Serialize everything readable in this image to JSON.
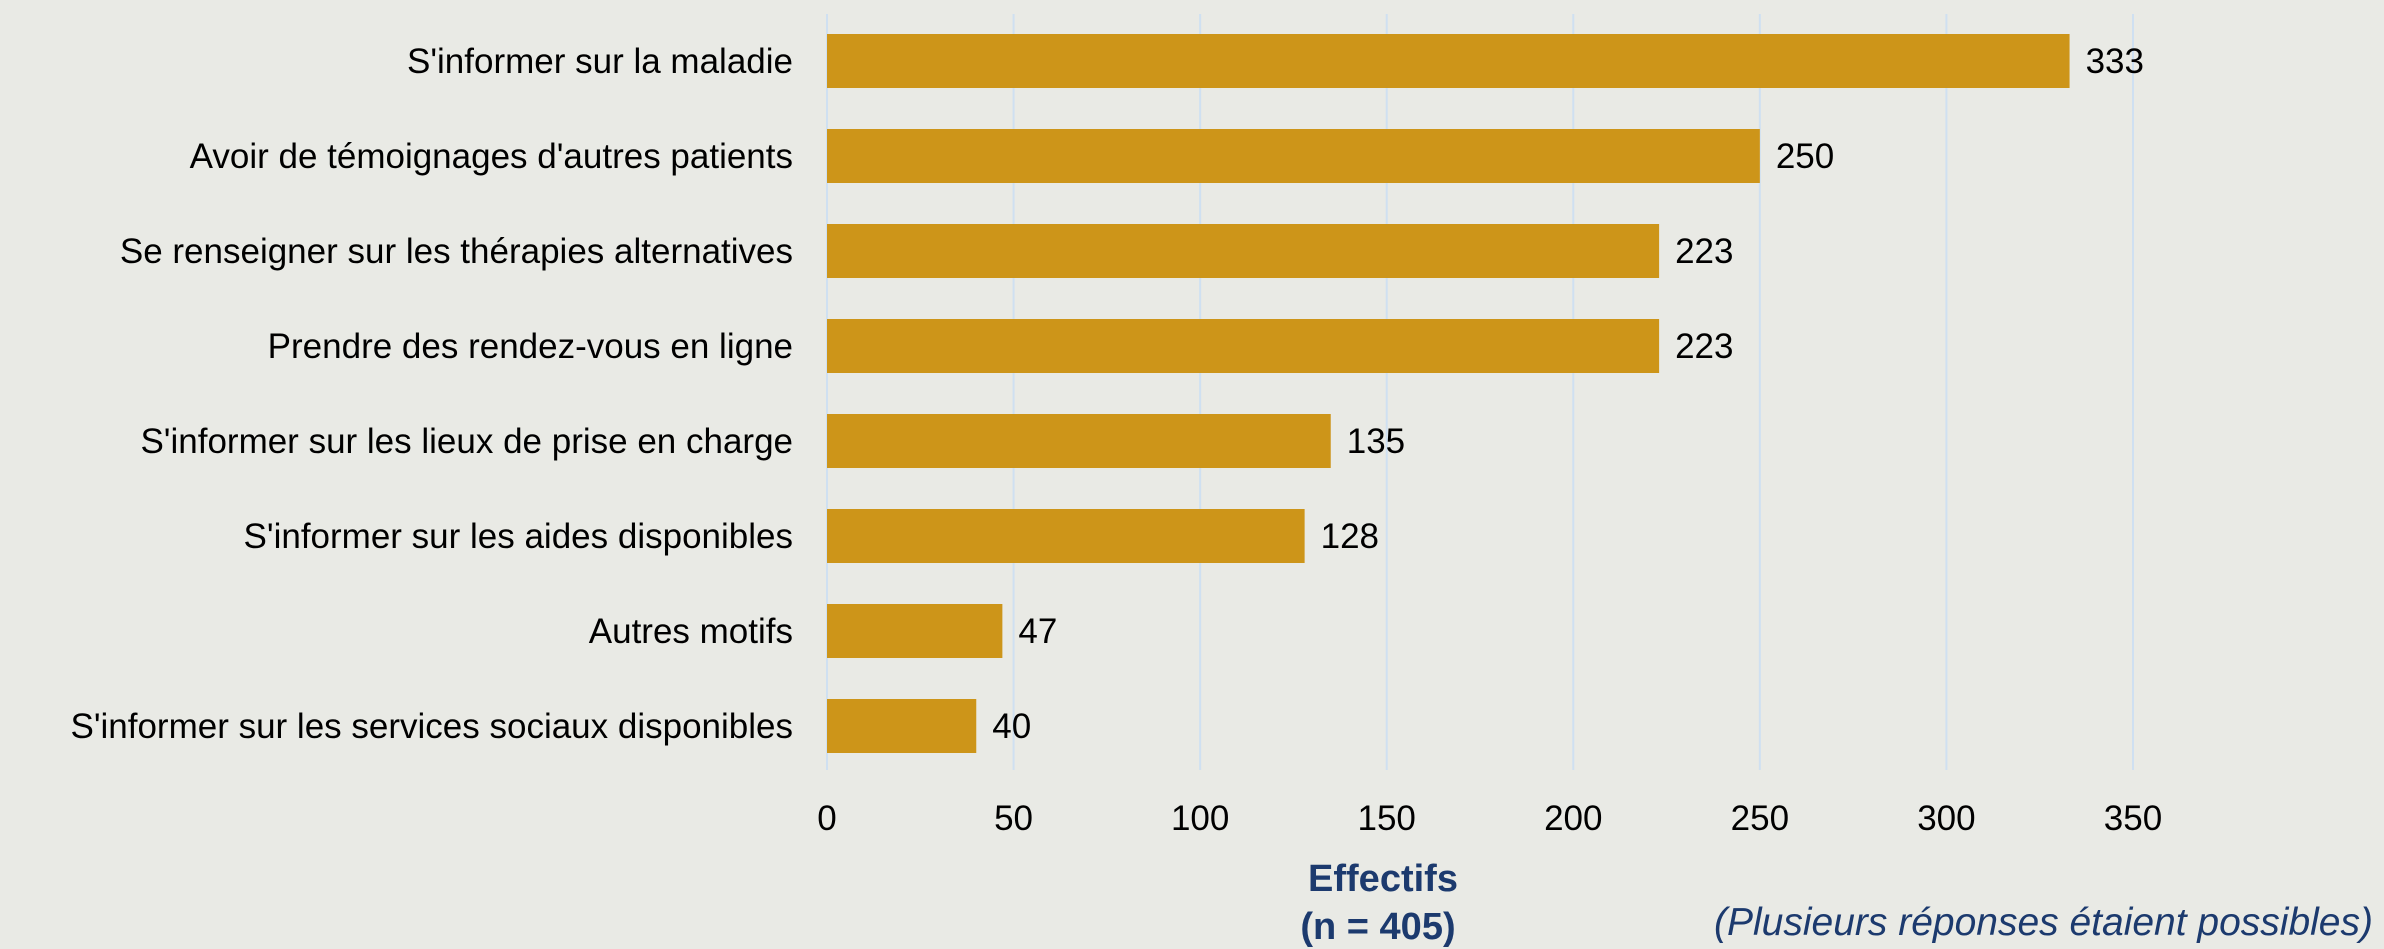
{
  "chart_data": {
    "type": "bar",
    "orientation": "horizontal",
    "categories": [
      "S'informer sur la maladie",
      "Avoir de témoignages d'autres patients",
      "Se renseigner sur les thérapies alternatives",
      "Prendre des rendez-vous en ligne",
      "S'informer sur les lieux de prise en charge",
      "S'informer sur les aides disponibles",
      "Autres motifs",
      "S'informer sur les services sociaux disponibles"
    ],
    "values": [
      333,
      250,
      223,
      223,
      135,
      128,
      47,
      40
    ],
    "xlabel_line1": "Effectifs",
    "xlabel_line2": "(n = 405)",
    "xlim": [
      0,
      350
    ],
    "xticks": [
      0,
      50,
      100,
      150,
      200,
      250,
      300,
      350
    ],
    "grid": true,
    "note": "(Plusieurs réponses étaient possibles)",
    "colors": {
      "bar": "#cd9519",
      "grid": "#cfe0f1",
      "axis_title": "#1c3a6e",
      "background": "#e9eae5"
    }
  }
}
